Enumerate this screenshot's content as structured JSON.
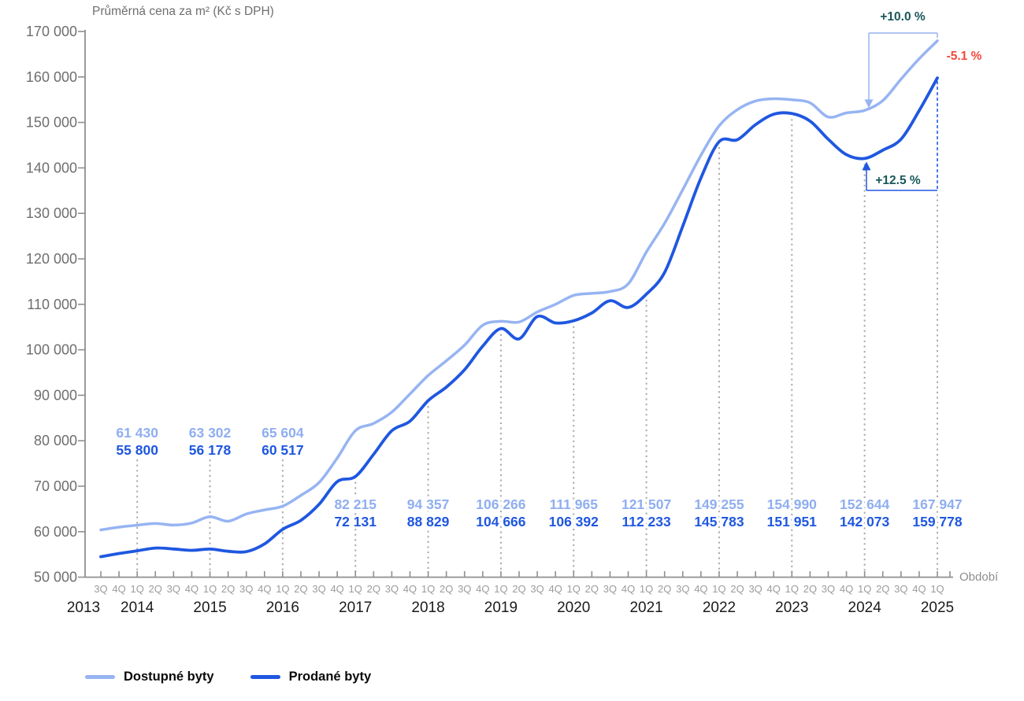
{
  "title": "Průměrná cena za m² (Kč s DPH)",
  "x_axis_label": "Období",
  "annotations": {
    "available_change": "+10.0 %",
    "sold_change": "+12.5 %",
    "gap_change": "-5.1 %",
    "positive_color": "#19575A",
    "negative_color": "#F4483C"
  },
  "legend": {
    "items": [
      {
        "label": "Dostupné byty",
        "color": "#97B4F2"
      },
      {
        "label": "Prodané byty",
        "color": "#1F57E0"
      }
    ]
  },
  "chart_data": {
    "type": "line",
    "title": "Průměrná cena za m² (Kč s DPH)",
    "xlabel": "Období",
    "ylabel": "Kč s DPH za m²",
    "ylim": [
      50000,
      170000
    ],
    "grid": false,
    "legend_position": "bottom-left",
    "y_ticks": [
      {
        "value": 170000,
        "label": "170 000"
      },
      {
        "value": 160000,
        "label": "160 000"
      },
      {
        "value": 150000,
        "label": "150 000"
      },
      {
        "value": 140000,
        "label": "140 000"
      },
      {
        "value": 130000,
        "label": "130 000"
      },
      {
        "value": 120000,
        "label": "120 000"
      },
      {
        "value": 110000,
        "label": "110 000"
      },
      {
        "value": 100000,
        "label": "100 000"
      },
      {
        "value": 90000,
        "label": "90 000"
      },
      {
        "value": 80000,
        "label": "80 000"
      },
      {
        "value": 70000,
        "label": "70 000"
      },
      {
        "value": 60000,
        "label": "60 000"
      },
      {
        "value": 50000,
        "label": "50 000"
      }
    ],
    "quarters": [
      "3Q 2013",
      "4Q 2013",
      "1Q 2014",
      "2Q 2014",
      "3Q 2014",
      "4Q 2014",
      "1Q 2015",
      "2Q 2015",
      "3Q 2015",
      "4Q 2015",
      "1Q 2016",
      "2Q 2016",
      "3Q 2016",
      "4Q 2016",
      "1Q 2017",
      "2Q 2017",
      "3Q 2017",
      "4Q 2017",
      "1Q 2018",
      "2Q 2018",
      "3Q 2018",
      "4Q 2018",
      "1Q 2019",
      "2Q 2019",
      "3Q 2019",
      "4Q 2019",
      "1Q 2020",
      "2Q 2020",
      "3Q 2020",
      "4Q 2020",
      "1Q 2021",
      "2Q 2021",
      "3Q 2021",
      "4Q 2021",
      "1Q 2022",
      "2Q 2022",
      "3Q 2022",
      "4Q 2022",
      "1Q 2023",
      "2Q 2023",
      "3Q 2023",
      "4Q 2023",
      "1Q 2024",
      "2Q 2024",
      "3Q 2024",
      "4Q 2024",
      "1Q 2025"
    ],
    "series": [
      {
        "name": "Dostupné byty",
        "color": "#97B4F2",
        "values": [
          60400,
          61000,
          61430,
          61800,
          61450,
          61900,
          63302,
          62300,
          63900,
          64800,
          65604,
          68000,
          70800,
          76200,
          82215,
          83800,
          86300,
          90300,
          94357,
          97600,
          101000,
          105400,
          106266,
          106100,
          108300,
          110000,
          111965,
          112400,
          112800,
          114500,
          121507,
          127800,
          135200,
          142800,
          149255,
          152800,
          154700,
          155200,
          154990,
          154300,
          151200,
          152100,
          152644,
          154800,
          159500,
          164000,
          167947
        ]
      },
      {
        "name": "Prodané byty",
        "color": "#1F57E0",
        "values": [
          54500,
          55200,
          55800,
          56400,
          56200,
          55900,
          56178,
          55700,
          55600,
          57300,
          60517,
          62500,
          66000,
          71000,
          72131,
          77000,
          82200,
          84300,
          88829,
          91800,
          95600,
          100800,
          104666,
          102400,
          107300,
          105900,
          106392,
          108100,
          110800,
          109300,
          112233,
          117000,
          127200,
          137800,
          145783,
          146200,
          149500,
          151800,
          151951,
          150300,
          146300,
          142900,
          142073,
          143900,
          146300,
          152600,
          159778
        ]
      }
    ],
    "first_quarter_labels": [
      {
        "year": "2014",
        "available": "61 430",
        "sold": "55 800"
      },
      {
        "year": "2015",
        "available": "63 302",
        "sold": "56 178"
      },
      {
        "year": "2016",
        "available": "65 604",
        "sold": "60 517"
      },
      {
        "year": "2017",
        "available": "82 215",
        "sold": "72 131"
      },
      {
        "year": "2018",
        "available": "94 357",
        "sold": "88 829"
      },
      {
        "year": "2019",
        "available": "106 266",
        "sold": "104 666"
      },
      {
        "year": "2020",
        "available": "111 965",
        "sold": "106 392"
      },
      {
        "year": "2021",
        "available": "121 507",
        "sold": "112 233"
      },
      {
        "year": "2022",
        "available": "149 255",
        "sold": "145 783"
      },
      {
        "year": "2023",
        "available": "154 990",
        "sold": "151 951"
      },
      {
        "year": "2024",
        "available": "152 644",
        "sold": "142 073"
      },
      {
        "year": "2025",
        "available": "167 947",
        "sold": "159 778"
      }
    ]
  }
}
